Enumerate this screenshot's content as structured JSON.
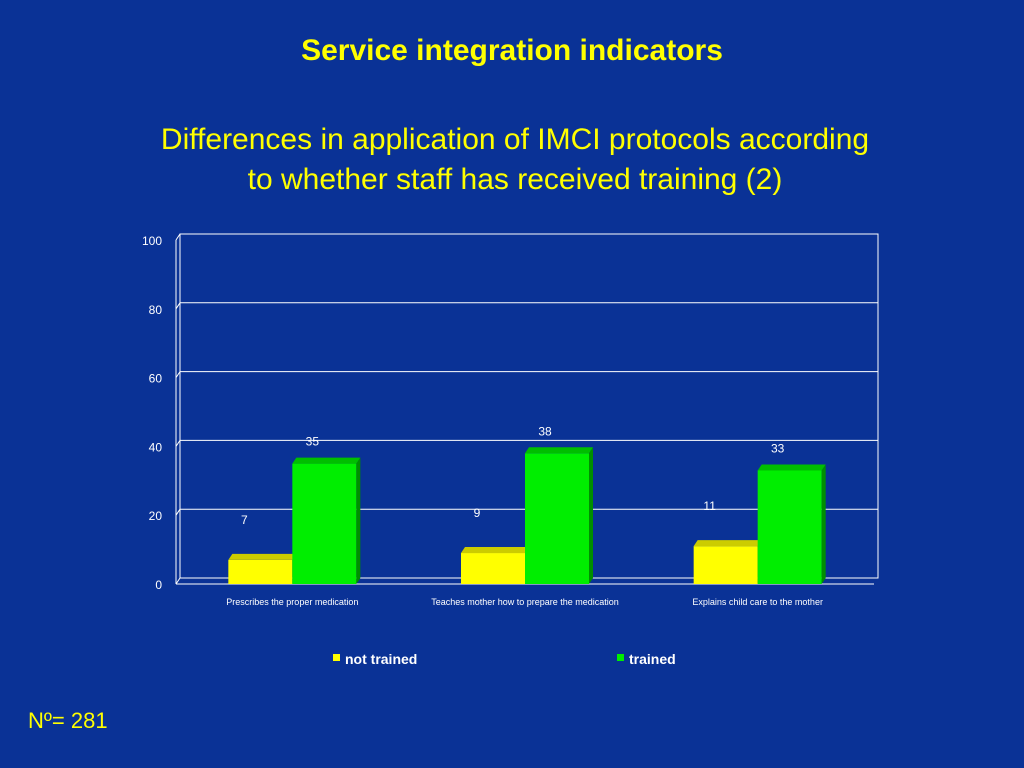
{
  "slide": {
    "title": "Service integration indicators",
    "subtitle_line1": "Differences in application of IMCI protocols according",
    "subtitle_line2": "to whether staff has received training (2)",
    "footnote": "Nº= 281"
  },
  "chart_data": {
    "type": "bar",
    "categories": [
      "Prescribes the proper medication",
      "Teaches mother how to prepare the medication",
      "Explains child care to the mother"
    ],
    "series": [
      {
        "name": "not trained",
        "values": [
          7,
          9,
          11
        ],
        "color": "#ffff00"
      },
      {
        "name": "trained",
        "values": [
          35,
          38,
          33
        ],
        "color": "#00ee00"
      }
    ],
    "ylim": [
      0,
      100
    ],
    "yticks": [
      0,
      20,
      40,
      60,
      80,
      100
    ],
    "grid": true,
    "legend": "bottom",
    "style": "3d"
  }
}
